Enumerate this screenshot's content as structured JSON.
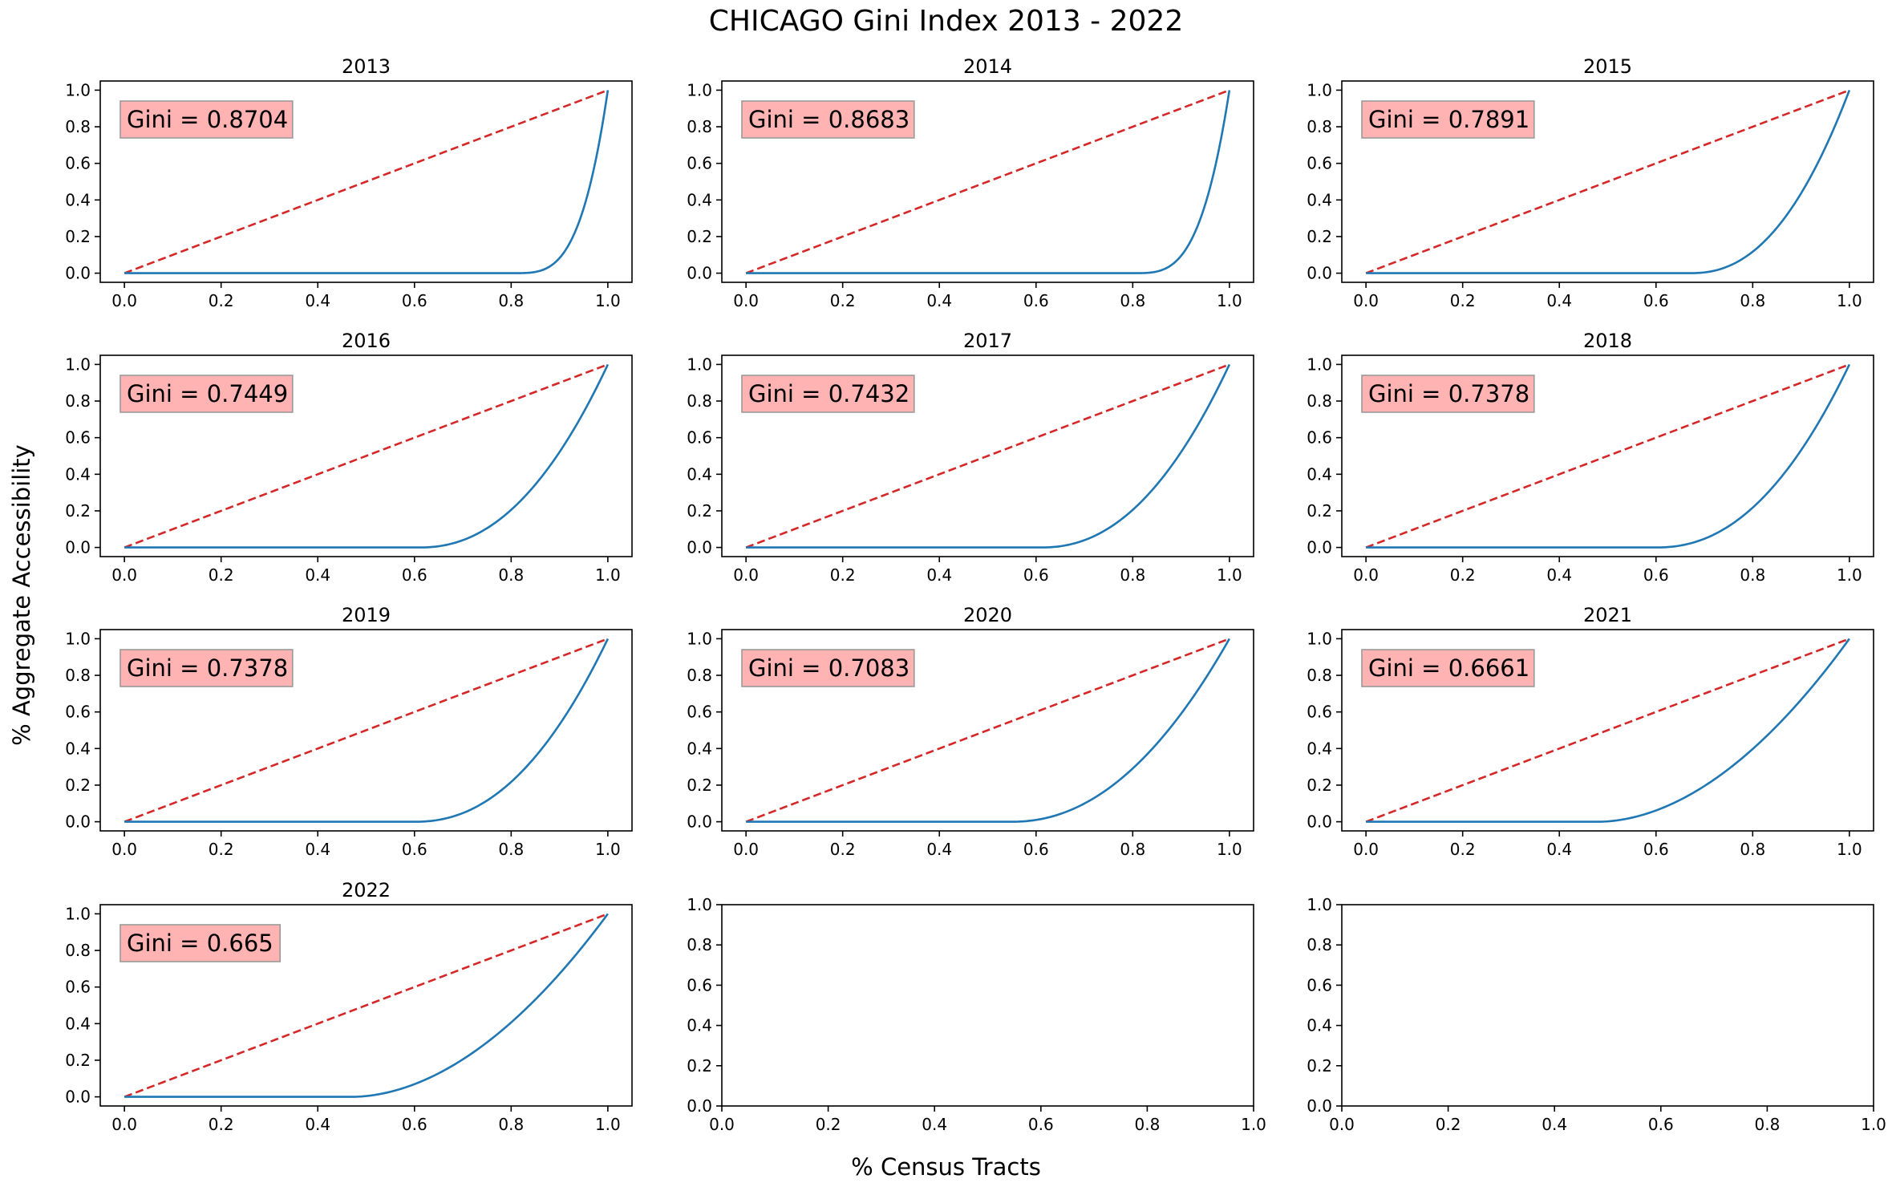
{
  "figure": {
    "title": "CHICAGO Gini Index 2013 - 2022",
    "xlabel": "% Census Tracts",
    "ylabel": "% Aggregate Accessibility"
  },
  "colors": {
    "lorenz": "#1f77b4",
    "equality": "#d62728",
    "gini_box_fill": "#ffb3b3",
    "gini_box_edge": "#999999",
    "axes": "#000000"
  },
  "chart_data": [
    {
      "type": "line",
      "title": "2013",
      "gini_label": "Gini = 0.8704",
      "gini": 0.8704,
      "curve_start": 0.8,
      "curve_power": 3.6,
      "xlim": [
        -0.05,
        1.05
      ],
      "ylim": [
        -0.05,
        1.05
      ],
      "xticks": [
        "0.0",
        "0.2",
        "0.4",
        "0.6",
        "0.8",
        "1.0"
      ],
      "yticks": [
        "0.0",
        "0.2",
        "0.4",
        "0.6",
        "0.8",
        "1.0"
      ],
      "series": [
        {
          "name": "",
          "x": [
            0,
            0.8,
            0.86,
            0.92,
            0.96,
            0.99,
            1.0
          ],
          "y": [
            0,
            0,
            0.09,
            0.32,
            0.56,
            0.82,
            1.0
          ]
        },
        {
          "name": "",
          "x": [
            0,
            1
          ],
          "y": [
            0,
            1
          ],
          "style": "dashed"
        }
      ]
    },
    {
      "type": "line",
      "title": "2014",
      "gini_label": "Gini = 0.8683",
      "gini": 0.8683,
      "curve_start": 0.8,
      "curve_power": 3.4,
      "xlim": [
        -0.05,
        1.05
      ],
      "ylim": [
        -0.05,
        1.05
      ],
      "xticks": [
        "0.0",
        "0.2",
        "0.4",
        "0.6",
        "0.8",
        "1.0"
      ],
      "yticks": [
        "0.0",
        "0.2",
        "0.4",
        "0.6",
        "0.8",
        "1.0"
      ],
      "series": [
        {
          "name": "",
          "x": [
            0,
            0.8,
            0.86,
            0.92,
            0.96,
            0.99,
            1.0
          ],
          "y": [
            0,
            0,
            0.09,
            0.33,
            0.58,
            0.83,
            1.0
          ]
        },
        {
          "name": "",
          "x": [
            0,
            1
          ],
          "y": [
            0,
            1
          ],
          "style": "dashed"
        }
      ]
    },
    {
      "type": "line",
      "title": "2015",
      "gini_label": "Gini = 0.7891",
      "gini": 0.7891,
      "curve_start": 0.67,
      "curve_power": 2.3,
      "xlim": [
        -0.05,
        1.05
      ],
      "ylim": [
        -0.05,
        1.05
      ],
      "xticks": [
        "0.0",
        "0.2",
        "0.4",
        "0.6",
        "0.8",
        "1.0"
      ],
      "yticks": [
        "0.0",
        "0.2",
        "0.4",
        "0.6",
        "0.8",
        "1.0"
      ],
      "series": [
        {
          "name": "",
          "x": [
            0,
            0.67,
            0.75,
            0.83,
            0.9,
            0.96,
            1.0
          ],
          "y": [
            0,
            0,
            0.07,
            0.22,
            0.42,
            0.7,
            1.0
          ]
        },
        {
          "name": "",
          "x": [
            0,
            1
          ],
          "y": [
            0,
            1
          ],
          "style": "dashed"
        }
      ]
    },
    {
      "type": "line",
      "title": "2016",
      "gini_label": "Gini = 0.7449",
      "gini": 0.7449,
      "curve_start": 0.61,
      "curve_power": 2.2,
      "xlim": [
        -0.05,
        1.05
      ],
      "ylim": [
        -0.05,
        1.05
      ],
      "xticks": [
        "0.0",
        "0.2",
        "0.4",
        "0.6",
        "0.8",
        "1.0"
      ],
      "yticks": [
        "0.0",
        "0.2",
        "0.4",
        "0.6",
        "0.8",
        "1.0"
      ],
      "series": [
        {
          "name": "",
          "x": [
            0,
            0.61,
            0.7,
            0.8,
            0.9,
            0.96,
            1.0
          ],
          "y": [
            0,
            0,
            0.07,
            0.23,
            0.48,
            0.73,
            1.0
          ]
        },
        {
          "name": "",
          "x": [
            0,
            1
          ],
          "y": [
            0,
            1
          ],
          "style": "dashed"
        }
      ]
    },
    {
      "type": "line",
      "title": "2017",
      "gini_label": "Gini = 0.7432",
      "gini": 0.7432,
      "curve_start": 0.61,
      "curve_power": 2.2,
      "xlim": [
        -0.05,
        1.05
      ],
      "ylim": [
        -0.05,
        1.05
      ],
      "xticks": [
        "0.0",
        "0.2",
        "0.4",
        "0.6",
        "0.8",
        "1.0"
      ],
      "yticks": [
        "0.0",
        "0.2",
        "0.4",
        "0.6",
        "0.8",
        "1.0"
      ],
      "series": [
        {
          "name": "",
          "x": [
            0,
            0.61,
            0.7,
            0.8,
            0.9,
            0.96,
            1.0
          ],
          "y": [
            0,
            0,
            0.07,
            0.23,
            0.48,
            0.73,
            1.0
          ]
        },
        {
          "name": "",
          "x": [
            0,
            1
          ],
          "y": [
            0,
            1
          ],
          "style": "dashed"
        }
      ]
    },
    {
      "type": "line",
      "title": "2018",
      "gini_label": "Gini = 0.7378",
      "gini": 0.7378,
      "curve_start": 0.6,
      "curve_power": 2.2,
      "xlim": [
        -0.05,
        1.05
      ],
      "ylim": [
        -0.05,
        1.05
      ],
      "xticks": [
        "0.0",
        "0.2",
        "0.4",
        "0.6",
        "0.8",
        "1.0"
      ],
      "yticks": [
        "0.0",
        "0.2",
        "0.4",
        "0.6",
        "0.8",
        "1.0"
      ],
      "series": [
        {
          "name": "",
          "x": [
            0,
            0.6,
            0.7,
            0.8,
            0.9,
            0.96,
            1.0
          ],
          "y": [
            0,
            0,
            0.07,
            0.24,
            0.49,
            0.74,
            1.0
          ]
        },
        {
          "name": "",
          "x": [
            0,
            1
          ],
          "y": [
            0,
            1
          ],
          "style": "dashed"
        }
      ]
    },
    {
      "type": "line",
      "title": "2019",
      "gini_label": "Gini = 0.7378",
      "gini": 0.7378,
      "curve_start": 0.6,
      "curve_power": 2.2,
      "xlim": [
        -0.05,
        1.05
      ],
      "ylim": [
        -0.05,
        1.05
      ],
      "xticks": [
        "0.0",
        "0.2",
        "0.4",
        "0.6",
        "0.8",
        "1.0"
      ],
      "yticks": [
        "0.0",
        "0.2",
        "0.4",
        "0.6",
        "0.8",
        "1.0"
      ],
      "series": [
        {
          "name": "",
          "x": [
            0,
            0.6,
            0.7,
            0.8,
            0.9,
            0.96,
            1.0
          ],
          "y": [
            0,
            0,
            0.07,
            0.24,
            0.49,
            0.74,
            1.0
          ]
        },
        {
          "name": "",
          "x": [
            0,
            1
          ],
          "y": [
            0,
            1
          ],
          "style": "dashed"
        }
      ]
    },
    {
      "type": "line",
      "title": "2020",
      "gini_label": "Gini = 0.7083",
      "gini": 0.7083,
      "curve_start": 0.55,
      "curve_power": 2.1,
      "xlim": [
        -0.05,
        1.05
      ],
      "ylim": [
        -0.05,
        1.05
      ],
      "xticks": [
        "0.0",
        "0.2",
        "0.4",
        "0.6",
        "0.8",
        "1.0"
      ],
      "yticks": [
        "0.0",
        "0.2",
        "0.4",
        "0.6",
        "0.8",
        "1.0"
      ],
      "series": [
        {
          "name": "",
          "x": [
            0,
            0.55,
            0.65,
            0.75,
            0.85,
            0.95,
            1.0
          ],
          "y": [
            0,
            0,
            0.06,
            0.18,
            0.38,
            0.7,
            1.0
          ]
        },
        {
          "name": "",
          "x": [
            0,
            1
          ],
          "y": [
            0,
            1
          ],
          "style": "dashed"
        }
      ]
    },
    {
      "type": "line",
      "title": "2021",
      "gini_label": "Gini = 0.6661",
      "gini": 0.6661,
      "curve_start": 0.48,
      "curve_power": 1.9,
      "xlim": [
        -0.05,
        1.05
      ],
      "ylim": [
        -0.05,
        1.05
      ],
      "xticks": [
        "0.0",
        "0.2",
        "0.4",
        "0.6",
        "0.8",
        "1.0"
      ],
      "yticks": [
        "0.0",
        "0.2",
        "0.4",
        "0.6",
        "0.8",
        "1.0"
      ],
      "series": [
        {
          "name": "",
          "x": [
            0,
            0.48,
            0.6,
            0.7,
            0.8,
            0.9,
            1.0
          ],
          "y": [
            0,
            0,
            0.08,
            0.19,
            0.33,
            0.54,
            1.0
          ]
        },
        {
          "name": "",
          "x": [
            0,
            1
          ],
          "y": [
            0,
            1
          ],
          "style": "dashed"
        }
      ]
    },
    {
      "type": "line",
      "title": "2022",
      "gini_label": "Gini = 0.665",
      "gini": 0.665,
      "curve_start": 0.47,
      "curve_power": 1.9,
      "xlim": [
        -0.05,
        1.05
      ],
      "ylim": [
        -0.05,
        1.05
      ],
      "xticks": [
        "0.0",
        "0.2",
        "0.4",
        "0.6",
        "0.8",
        "1.0"
      ],
      "yticks": [
        "0.0",
        "0.2",
        "0.4",
        "0.6",
        "0.8",
        "1.0"
      ],
      "series": [
        {
          "name": "",
          "x": [
            0,
            0.47,
            0.6,
            0.7,
            0.8,
            0.9,
            1.0
          ],
          "y": [
            0,
            0,
            0.09,
            0.2,
            0.34,
            0.55,
            1.0
          ]
        },
        {
          "name": "",
          "x": [
            0,
            1
          ],
          "y": [
            0,
            1
          ],
          "style": "dashed"
        }
      ]
    },
    {
      "type": "line",
      "title": "",
      "empty": true,
      "xlim": [
        0,
        1
      ],
      "ylim": [
        0,
        1
      ],
      "xticks": [
        "0.0",
        "0.2",
        "0.4",
        "0.6",
        "0.8",
        "1.0"
      ],
      "yticks": [
        "0.0",
        "0.2",
        "0.4",
        "0.6",
        "0.8",
        "1.0"
      ],
      "series": []
    },
    {
      "type": "line",
      "title": "",
      "empty": true,
      "xlim": [
        0,
        1
      ],
      "ylim": [
        0,
        1
      ],
      "xticks": [
        "0.0",
        "0.2",
        "0.4",
        "0.6",
        "0.8",
        "1.0"
      ],
      "yticks": [
        "0.0",
        "0.2",
        "0.4",
        "0.6",
        "0.8",
        "1.0"
      ],
      "series": []
    }
  ]
}
